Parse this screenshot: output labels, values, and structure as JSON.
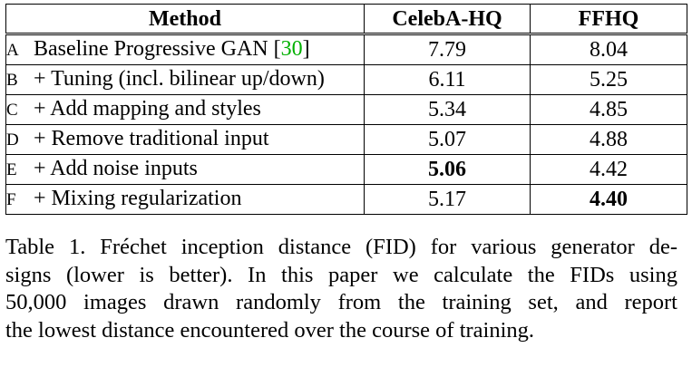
{
  "table": {
    "headers": [
      "Method",
      "CelebA-HQ",
      "FFHQ"
    ],
    "rows": [
      {
        "letter": "A",
        "method": "Baseline Progressive GAN [",
        "ref": "30",
        "method_suffix": "]",
        "celeba": "7.79",
        "ffhq": "8.04",
        "bold": ""
      },
      {
        "letter": "B",
        "method": "+ Tuning (incl. bilinear up/down)",
        "ref": "",
        "method_suffix": "",
        "celeba": "6.11",
        "ffhq": "5.25",
        "bold": ""
      },
      {
        "letter": "C",
        "method": "+ Add mapping and styles",
        "ref": "",
        "method_suffix": "",
        "celeba": "5.34",
        "ffhq": "4.85",
        "bold": ""
      },
      {
        "letter": "D",
        "method": "+ Remove traditional input",
        "ref": "",
        "method_suffix": "",
        "celeba": "5.07",
        "ffhq": "4.88",
        "bold": ""
      },
      {
        "letter": "E",
        "method": "+ Add noise inputs",
        "ref": "",
        "method_suffix": "",
        "celeba": "5.06",
        "ffhq": "4.42",
        "bold": "celeba"
      },
      {
        "letter": "F",
        "method": "+ Mixing regularization",
        "ref": "",
        "method_suffix": "",
        "celeba": "5.17",
        "ffhq": "4.40",
        "bold": "ffhq"
      }
    ]
  },
  "caption": {
    "lines": [
      "Table 1. Fréchet inception distance (FID) for various generator de-",
      "signs (lower is better). In this paper we calculate the FIDs using",
      "50,000 images drawn randomly from the training set, and report",
      "the lowest distance encountered over the course of training."
    ]
  },
  "colors": {
    "citation": "#00b000",
    "text": "#000000"
  }
}
